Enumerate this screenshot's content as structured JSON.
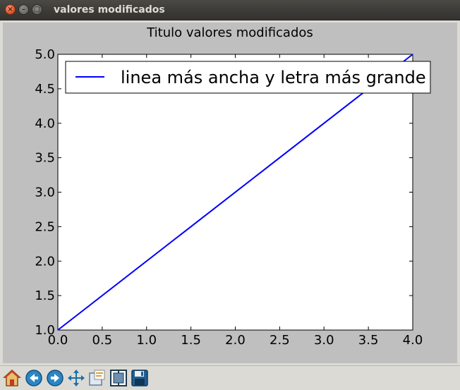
{
  "window": {
    "title": "valores modificados"
  },
  "toolbar": {
    "buttons": [
      {
        "name": "home-button",
        "icon": "home-icon"
      },
      {
        "name": "back-button",
        "icon": "arrow-left-icon"
      },
      {
        "name": "forward-button",
        "icon": "arrow-right-icon"
      },
      {
        "name": "pan-button",
        "icon": "move-arrows-icon"
      },
      {
        "name": "zoom-button",
        "icon": "zoom-rect-icon"
      },
      {
        "name": "subplots-button",
        "icon": "subplots-icon"
      },
      {
        "name": "save-button",
        "icon": "floppy-disk-icon"
      }
    ]
  },
  "chart_data": {
    "type": "line",
    "title": "Titulo valores modificados",
    "xlabel": "",
    "ylabel": "",
    "xlim": [
      0.0,
      4.0
    ],
    "ylim": [
      1.0,
      5.0
    ],
    "xticks": [
      "0.0",
      "0.5",
      "1.0",
      "1.5",
      "2.0",
      "2.5",
      "3.0",
      "3.5",
      "4.0"
    ],
    "yticks": [
      "1.0",
      "1.5",
      "2.0",
      "2.5",
      "3.0",
      "3.5",
      "4.0",
      "4.5",
      "5.0"
    ],
    "grid": false,
    "legend_position": "top-right",
    "series": [
      {
        "name": "linea más ancha y letra más grande",
        "color": "#0000ff",
        "x": [
          0.0,
          4.0
        ],
        "y": [
          1.0,
          5.0
        ]
      }
    ],
    "colors": {
      "figure_background": "#bfbfbf",
      "axes_background": "#ffffff"
    }
  }
}
